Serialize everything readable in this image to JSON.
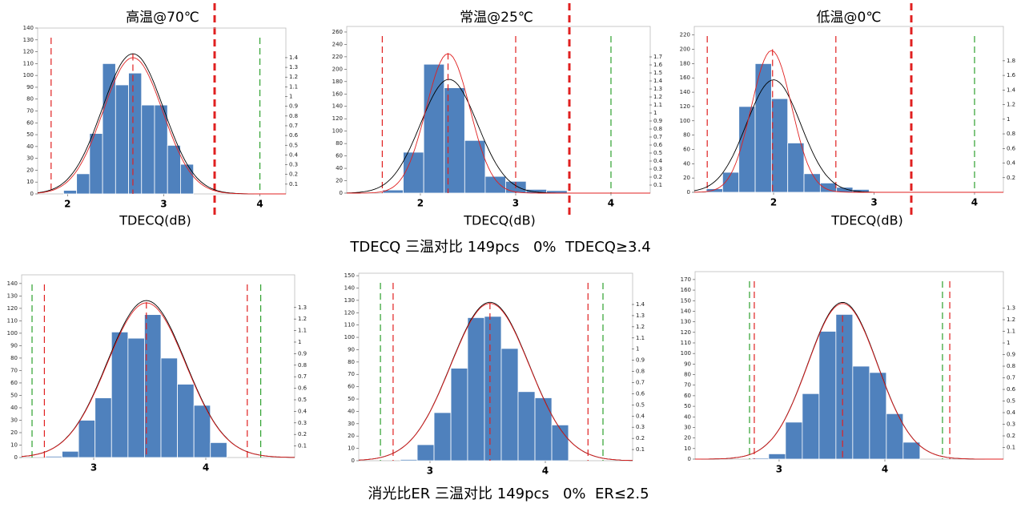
{
  "chart_data": [
    {
      "type": "histogram",
      "title": "高温@70℃",
      "xlabel": "TDECQ(dB)",
      "color": "#4f81bd",
      "bins": [
        1.96,
        2.095,
        2.23,
        2.365,
        2.5,
        2.635,
        2.77,
        2.905,
        3.04,
        3.175,
        3.31
      ],
      "counts": [
        3,
        17,
        51,
        110,
        92,
        102,
        75,
        75,
        41,
        25
      ],
      "xlim": [
        1.69,
        4.27
      ],
      "xticks": [
        2,
        3,
        4
      ],
      "ylim": [
        0,
        140
      ],
      "yticks": [
        0,
        10,
        20,
        30,
        40,
        50,
        60,
        70,
        80,
        90,
        100,
        110,
        120,
        130,
        140
      ],
      "y2lim": [
        0,
        1.704
      ],
      "y2ticks": [
        0.1,
        0.2,
        0.3,
        0.4,
        0.5,
        0.6,
        0.7,
        0.8,
        0.9,
        1,
        1.1,
        1.2,
        1.3,
        1.4
      ],
      "fits": [
        {
          "color": "#000000",
          "mean": 2.68,
          "sd": 0.32,
          "peak": 1.44
        },
        {
          "color": "#e02020",
          "mean": 2.68,
          "sd": 0.31,
          "peak": 1.4
        }
      ],
      "limits": [
        {
          "value": 1.83,
          "color": "#e02020"
        },
        {
          "value": 4.0,
          "color": "#2ca02c"
        }
      ],
      "mean_line": {
        "value": 2.68,
        "top": 118,
        "color": "#e02020"
      }
    },
    {
      "type": "histogram",
      "title": "常温@25℃",
      "xlabel": "TDECQ(dB)",
      "color": "#4f81bd",
      "bins": [
        1.605,
        1.82,
        2.035,
        2.25,
        2.465,
        2.68,
        2.895,
        3.11,
        3.325,
        3.54
      ],
      "counts": [
        5,
        66,
        208,
        170,
        85,
        27,
        19,
        6,
        4
      ],
      "xlim": [
        1.227,
        4.412
      ],
      "xticks": [
        2,
        3,
        4
      ],
      "ylim": [
        0,
        269
      ],
      "yticks": [
        0,
        20,
        40,
        60,
        80,
        100,
        120,
        140,
        160,
        180,
        200,
        220,
        240,
        260
      ],
      "y2lim": [
        0,
        2.08
      ],
      "y2ticks": [
        0.1,
        0.2,
        0.3,
        0.4,
        0.5,
        0.6,
        0.7,
        0.8,
        0.9,
        1,
        1.1,
        1.2,
        1.3,
        1.4,
        1.5,
        1.6,
        1.7
      ],
      "fits": [
        {
          "color": "#000000",
          "mean": 2.3,
          "sd": 0.3,
          "peak": 1.42
        },
        {
          "color": "#e02020",
          "mean": 2.29,
          "sd": 0.23,
          "peak": 1.74
        }
      ],
      "limits": [
        {
          "value": 1.6,
          "color": "#e02020"
        },
        {
          "value": 3.0,
          "color": "#e02020"
        },
        {
          "value": 4.0,
          "color": "#2ca02c"
        }
      ],
      "mean_line": {
        "value": 2.29,
        "top": 226,
        "color": "#e02020"
      }
    },
    {
      "type": "histogram",
      "title": "低温@0℃",
      "xlabel": "TDECQ(dB)",
      "color": "#4f81bd",
      "bins": [
        1.331,
        1.493,
        1.655,
        1.817,
        1.979,
        2.141,
        2.303,
        2.465,
        2.627,
        2.789,
        2.951
      ],
      "counts": [
        5,
        28,
        120,
        180,
        131,
        69,
        26,
        13,
        7,
        4
      ],
      "xlim": [
        1.211,
        4.287
      ],
      "xticks": [
        2,
        3,
        4
      ],
      "ylim": [
        0,
        232
      ],
      "yticks": [
        0,
        20,
        40,
        60,
        80,
        100,
        120,
        140,
        160,
        180,
        200,
        220
      ],
      "y2lim": [
        0,
        2.27
      ],
      "y2ticks": [
        0.2,
        0.4,
        0.6,
        0.8,
        1,
        1.2,
        1.4,
        1.6,
        1.8
      ],
      "fits": [
        {
          "color": "#000000",
          "mean": 2.0,
          "sd": 0.27,
          "peak": 1.54
        },
        {
          "color": "#e02020",
          "mean": 1.98,
          "sd": 0.2,
          "peak": 1.94
        }
      ],
      "limits": [
        {
          "value": 1.34,
          "color": "#e02020"
        },
        {
          "value": 2.62,
          "color": "#e02020"
        },
        {
          "value": 4.0,
          "color": "#2ca02c"
        }
      ],
      "mean_line": {
        "value": 1.99,
        "top": 200,
        "color": "#e02020"
      }
    },
    {
      "type": "histogram",
      "color": "#4f81bd",
      "bins": [
        2.571,
        2.718,
        2.865,
        3.012,
        3.159,
        3.306,
        3.453,
        3.6,
        3.747,
        3.894,
        4.041,
        4.188
      ],
      "counts": [
        1,
        5,
        30,
        48,
        101,
        96,
        115,
        80,
        59,
        42,
        12
      ],
      "xlim": [
        2.357,
        4.793
      ],
      "xticks": [
        3,
        4
      ],
      "ylim": [
        0,
        147
      ],
      "yticks": [
        0,
        10,
        20,
        30,
        40,
        50,
        60,
        70,
        80,
        90,
        100,
        110,
        120,
        130,
        140
      ],
      "y2lim": [
        0,
        1.583
      ],
      "y2ticks": [
        0.1,
        0.2,
        0.3,
        0.4,
        0.5,
        0.6,
        0.7,
        0.8,
        0.9,
        1,
        1.1,
        1.2,
        1.3
      ],
      "fits": [
        {
          "color": "#000000",
          "mean": 3.47,
          "sd": 0.35,
          "peak": 1.36
        },
        {
          "color": "#e02020",
          "mean": 3.47,
          "sd": 0.35,
          "peak": 1.34
        }
      ],
      "limits": [
        {
          "value": 2.45,
          "color": "#2ca02c"
        },
        {
          "value": 2.56,
          "color": "#e02020"
        },
        {
          "value": 4.37,
          "color": "#e02020"
        },
        {
          "value": 4.49,
          "color": "#2ca02c"
        }
      ],
      "mean_line": {
        "value": 3.47,
        "top": 125,
        "color": "#e02020"
      }
    },
    {
      "type": "histogram",
      "color": "#4f81bd",
      "bins": [
        2.743,
        2.889,
        3.035,
        3.181,
        3.326,
        3.472,
        3.618,
        3.764,
        3.91,
        4.056,
        4.201
      ],
      "counts": [
        1,
        13,
        39,
        75,
        116,
        117,
        91,
        56,
        51,
        29
      ],
      "xlim": [
        2.382,
        4.757
      ],
      "xticks": [
        3,
        4
      ],
      "ylim": [
        0,
        152
      ],
      "yticks": [
        0,
        10,
        20,
        30,
        40,
        50,
        60,
        70,
        80,
        90,
        100,
        110,
        120,
        130,
        140,
        150
      ],
      "y2lim": [
        0,
        1.68
      ],
      "y2ticks": [
        0.1,
        0.2,
        0.3,
        0.4,
        0.5,
        0.6,
        0.7,
        0.8,
        0.9,
        1,
        1.1,
        1.2,
        1.3,
        1.4
      ],
      "fits": [
        {
          "color": "#000000",
          "mean": 3.52,
          "sd": 0.34,
          "peak": 1.42
        },
        {
          "color": "#e02020",
          "mean": 3.52,
          "sd": 0.34,
          "peak": 1.41
        }
      ],
      "limits": [
        {
          "value": 2.57,
          "color": "#2ca02c"
        },
        {
          "value": 2.68,
          "color": "#e02020"
        },
        {
          "value": 4.37,
          "color": "#e02020"
        },
        {
          "value": 4.5,
          "color": "#2ca02c"
        }
      ],
      "mean_line": {
        "value": 3.52,
        "top": 128,
        "color": "#e02020"
      }
    },
    {
      "type": "histogram",
      "color": "#4f81bd",
      "bins": [
        2.742,
        2.901,
        3.06,
        3.219,
        3.378,
        3.537,
        3.696,
        3.855,
        4.014,
        4.173,
        4.332
      ],
      "counts": [
        1,
        5,
        35,
        62,
        121,
        137,
        88,
        82,
        43,
        16
      ],
      "xlim": [
        2.205,
        5.121
      ],
      "xticks": [
        3,
        4
      ],
      "ylim": [
        0,
        177.5
      ],
      "yticks": [
        0,
        10,
        20,
        30,
        40,
        50,
        60,
        70,
        80,
        90,
        100,
        110,
        120,
        130,
        140,
        150,
        160,
        170
      ],
      "y2lim": [
        0,
        1.614
      ],
      "y2ticks": [
        0.1,
        0.2,
        0.3,
        0.4,
        0.5,
        0.6,
        0.7,
        0.8,
        0.9,
        1,
        1.1,
        1.2,
        1.3
      ],
      "fits": [
        {
          "color": "#000000",
          "mean": 3.6,
          "sd": 0.33,
          "peak": 1.35
        },
        {
          "color": "#e02020",
          "mean": 3.6,
          "sd": 0.33,
          "peak": 1.34
        }
      ],
      "limits": [
        {
          "value": 2.72,
          "color": "#2ca02c"
        },
        {
          "value": 2.765,
          "color": "#e02020"
        },
        {
          "value": 4.545,
          "color": "#2ca02c"
        },
        {
          "value": 4.614,
          "color": "#e02020"
        }
      ],
      "mean_line": {
        "value": 3.6,
        "top": 136,
        "color": "#e02020"
      }
    }
  ],
  "captions": [
    "TDECQ 三温对比 149pcs   0%  TDECQ≥3.4",
    "消光比ER 三温对比 149pcs   0%  ER≤2.5"
  ]
}
